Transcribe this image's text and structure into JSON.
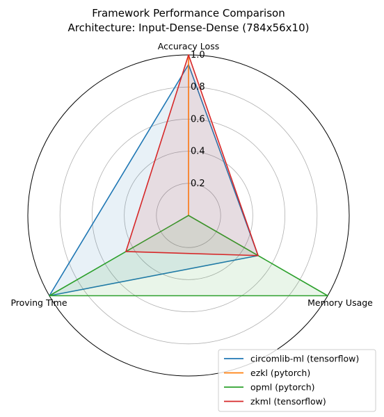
{
  "chart_data": {
    "type": "radar",
    "title": "Framework Performance Comparison",
    "subtitle": "Architecture: Input-Dense-Dense (784x56x10)",
    "axes": [
      "Accuracy Loss",
      "Memory Usage",
      "Proving Time"
    ],
    "rlim": [
      0,
      1.0
    ],
    "rticks": [
      0.2,
      0.4,
      0.6,
      0.8,
      1.0
    ],
    "rtick_labels": [
      "0.2",
      "0.4",
      "0.6",
      "0.8",
      "1.0"
    ],
    "grid": true,
    "legend_position": "bottom-right",
    "series": [
      {
        "name": "circomlib-ml (tensorflow)",
        "color": "#1f77b4",
        "values": [
          0.94,
          0.5,
          1.0
        ]
      },
      {
        "name": "ezkl (pytorch)",
        "color": "#ff7f0e",
        "values": [
          1.0,
          0.0,
          0.0
        ]
      },
      {
        "name": "opml (pytorch)",
        "color": "#2ca02c",
        "values": [
          0.0,
          1.0,
          1.0
        ]
      },
      {
        "name": "zkml (tensorflow)",
        "color": "#d62728",
        "values": [
          1.0,
          0.5,
          0.45
        ]
      }
    ]
  }
}
